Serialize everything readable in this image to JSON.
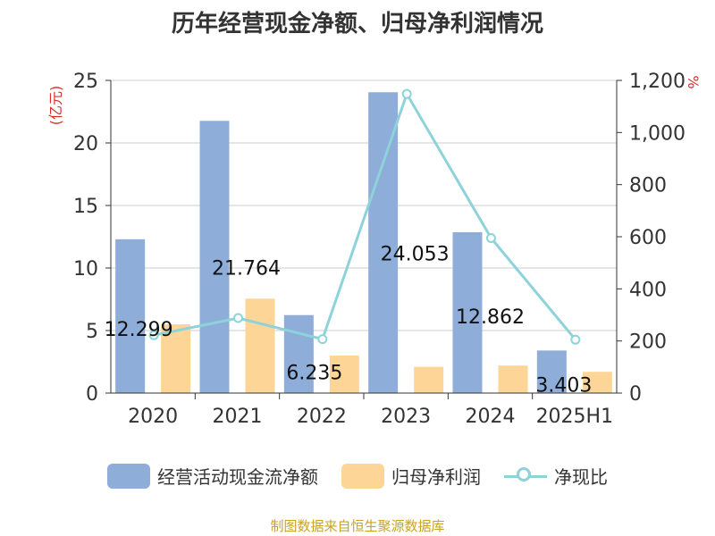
{
  "title": "历年经营现金净额、归母净利润情况",
  "source": "制图数据来自恒生聚源数据库",
  "colors": {
    "bar1": "#8eadd9",
    "bar2": "#fdd697",
    "line": "#8dd3d9",
    "axisLabelLeft": "#d9302c",
    "grid": "#cccccc",
    "text": "#333333"
  },
  "legend": {
    "bar1": "经营活动现金流净额",
    "bar2": "归母净利润",
    "line": "净现比"
  },
  "chart_data": {
    "type": "bar",
    "categories": [
      "2020",
      "2021",
      "2022",
      "2023",
      "2024",
      "2025H1"
    ],
    "series": [
      {
        "name": "经营活动现金流净额",
        "type": "bar",
        "axis": "left",
        "values": [
          12.299,
          21.764,
          6.235,
          24.053,
          12.862,
          3.403
        ]
      },
      {
        "name": "归母净利润",
        "type": "bar",
        "axis": "left",
        "values": [
          5.5,
          7.55,
          3.0,
          2.1,
          2.2,
          1.7
        ]
      },
      {
        "name": "净现比",
        "type": "line",
        "axis": "right",
        "values": [
          222,
          288,
          207,
          1148,
          595,
          205
        ]
      }
    ],
    "data_labels": [
      "12.299",
      "21.764",
      "6.235",
      "24.053",
      "12.862",
      "3.403"
    ],
    "ylabel": "(亿元)",
    "ylabel_right": "%",
    "ylim": [
      0,
      25
    ],
    "ylim_right": [
      0,
      1200
    ],
    "yticks": [
      "0",
      "5",
      "10",
      "15",
      "20",
      "25"
    ],
    "yticks_right": [
      "0",
      "200",
      "400",
      "600",
      "800",
      "1,000",
      "1,200"
    ],
    "grid": true,
    "legend_position": "bottom"
  }
}
